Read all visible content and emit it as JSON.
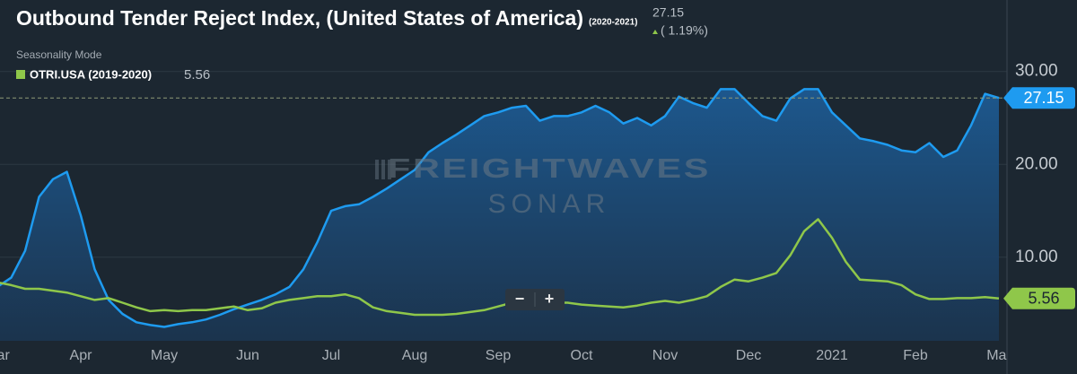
{
  "header": {
    "title": "Outbound Tender Reject Index, (United States of America)",
    "period": "(2020-2021)",
    "change": "( 1.19%)",
    "mode": "Seasonality Mode"
  },
  "watermark": {
    "brand": "FREIGHTWAVES",
    "product": "SONAR"
  },
  "zoom": {
    "out": "−",
    "in": "+"
  },
  "chart_data": {
    "type": "line",
    "categories": [
      "Mar",
      null,
      null,
      null,
      null,
      null,
      "Apr",
      null,
      null,
      null,
      null,
      null,
      "May",
      null,
      null,
      null,
      null,
      null,
      "Jun",
      null,
      null,
      null,
      null,
      null,
      "Jul",
      null,
      null,
      null,
      null,
      null,
      "Aug",
      null,
      null,
      null,
      null,
      null,
      "Sep",
      null,
      null,
      null,
      null,
      null,
      "Oct",
      null,
      null,
      null,
      null,
      null,
      "Nov",
      null,
      null,
      null,
      null,
      null,
      "Dec",
      null,
      null,
      null,
      null,
      null,
      "2021",
      null,
      null,
      null,
      null,
      null,
      "Feb",
      null,
      null,
      null,
      null,
      null,
      "Mar"
    ],
    "series": [
      {
        "color": "#1e9bf0",
        "area": true,
        "values": [
          6.8,
          7.8,
          10.7,
          16.5,
          18.4,
          19.2,
          14.5,
          8.7,
          5.4,
          3.9,
          3.0,
          2.7,
          2.5,
          2.8,
          3.0,
          3.3,
          3.8,
          4.4,
          4.9,
          5.4,
          6.0,
          6.8,
          8.7,
          11.6,
          15.0,
          15.5,
          15.7,
          16.5,
          17.4,
          18.4,
          19.4,
          21.3,
          22.3,
          23.2,
          24.2,
          25.2,
          25.6,
          26.1,
          26.3,
          24.7,
          25.2,
          25.2,
          25.6,
          26.3,
          25.6,
          24.4,
          25.0,
          24.2,
          25.2,
          27.3,
          26.6,
          26.1,
          28.1,
          28.1,
          26.6,
          25.2,
          24.7,
          27.1,
          28.1,
          28.1,
          25.6,
          24.2,
          22.8,
          22.5,
          22.1,
          21.5,
          21.3,
          22.3,
          20.8,
          21.5,
          24.2,
          27.6,
          27.15
        ]
      },
      {
        "name": "OTRI.USA (2019-2020)",
        "color": "#8fc74a",
        "area": false,
        "values": [
          7.3,
          7.0,
          6.6,
          6.6,
          6.4,
          6.2,
          5.8,
          5.4,
          5.6,
          5.1,
          4.6,
          4.2,
          4.3,
          4.2,
          4.3,
          4.3,
          4.5,
          4.7,
          4.3,
          4.5,
          5.1,
          5.4,
          5.6,
          5.8,
          5.8,
          6.0,
          5.6,
          4.6,
          4.2,
          4.0,
          3.8,
          3.8,
          3.8,
          3.9,
          4.1,
          4.3,
          4.7,
          5.1,
          5.2,
          5.1,
          5.1,
          5.1,
          4.9,
          4.8,
          4.7,
          4.6,
          4.8,
          5.1,
          5.3,
          5.1,
          5.4,
          5.8,
          6.8,
          7.6,
          7.4,
          7.8,
          8.3,
          10.2,
          12.8,
          14.1,
          12.1,
          9.5,
          7.6,
          7.5,
          7.4,
          7.0,
          6.0,
          5.5,
          5.5,
          5.6,
          5.6,
          5.7,
          5.56
        ]
      }
    ],
    "ylim": [
      1,
      37.7
    ],
    "yticks": [
      {
        "value": 10,
        "label": "10.00"
      },
      {
        "value": 20,
        "label": "20.00"
      },
      {
        "value": 30,
        "label": "30.00"
      }
    ],
    "grid": true
  }
}
